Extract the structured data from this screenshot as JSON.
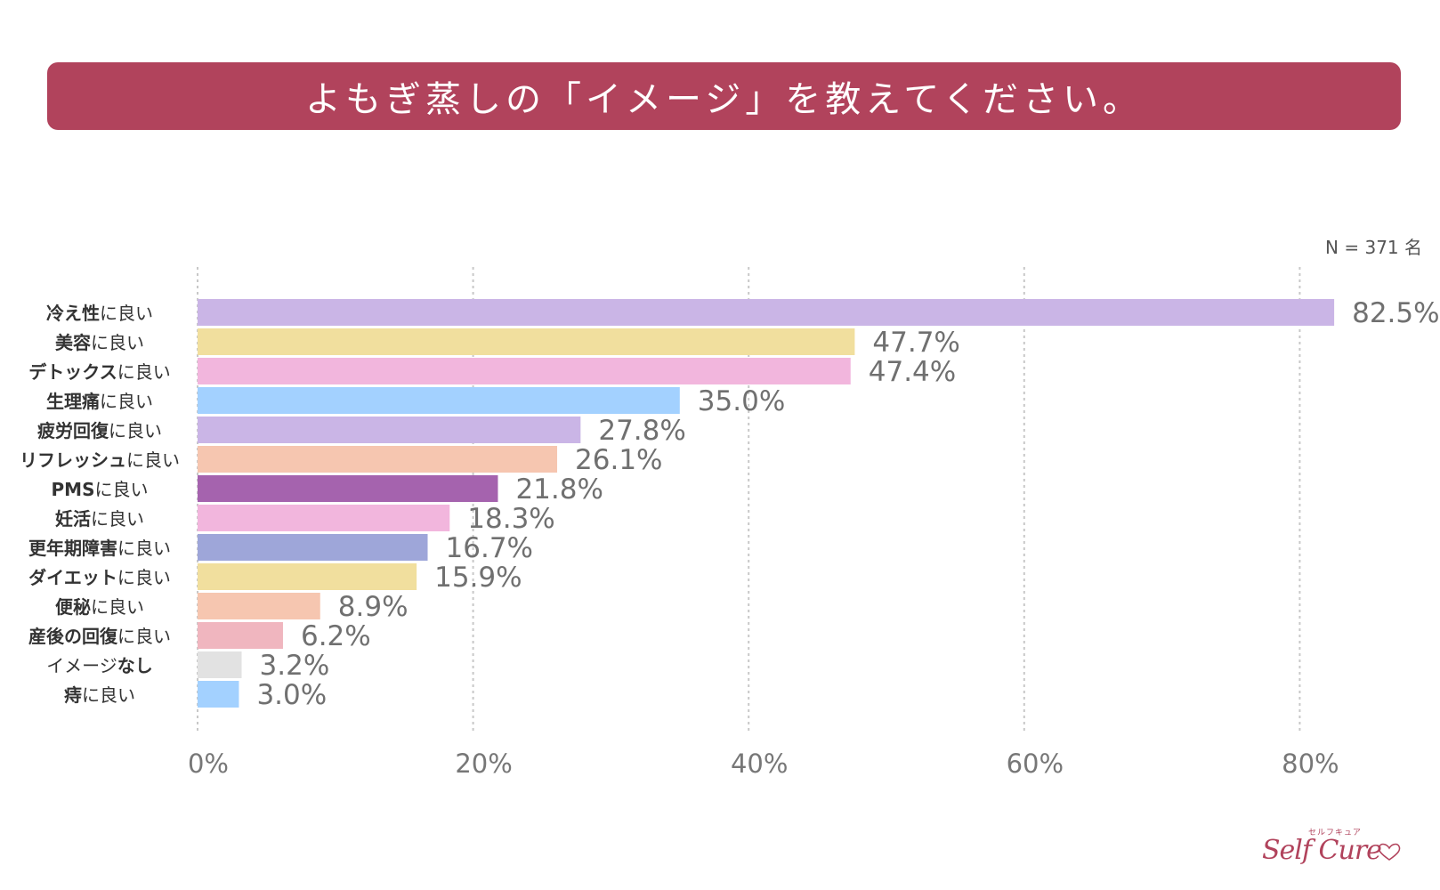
{
  "header": {
    "title": "よもぎ蒸しの「イメージ」を教えてください。",
    "sample_size": "N = 371 名"
  },
  "chart_data": {
    "type": "bar",
    "orientation": "horizontal",
    "title": "よもぎ蒸しの「イメージ」を教えてください。",
    "xlabel": "",
    "ylabel": "",
    "xlim": [
      0,
      90
    ],
    "grid": true,
    "x_ticks": [
      0,
      20,
      40,
      60,
      80
    ],
    "x_tick_labels": [
      "0%",
      "20%",
      "40%",
      "60%",
      "80%"
    ],
    "categories": [
      {
        "bold": "冷え性",
        "normal": "に良い"
      },
      {
        "bold": "美容",
        "normal": "に良い"
      },
      {
        "bold": "デトックス",
        "normal": "に良い"
      },
      {
        "bold": "生理痛",
        "normal": "に良い"
      },
      {
        "bold": "疲労回復",
        "normal": "に良い"
      },
      {
        "bold": "リフレッシュ",
        "normal": "に良い"
      },
      {
        "bold": "PMS",
        "normal": "に良い"
      },
      {
        "bold": "妊活",
        "normal": "に良い"
      },
      {
        "bold": "更年期障害",
        "normal": "に良い"
      },
      {
        "bold": "ダイエット",
        "normal": "に良い"
      },
      {
        "bold": "便秘",
        "normal": "に良い"
      },
      {
        "bold": "産後の回復",
        "normal": "に良い"
      },
      {
        "bold": "なし",
        "normal": "イメージ",
        "order": "normal-first"
      },
      {
        "bold": "痔",
        "normal": "に良い"
      }
    ],
    "values": [
      82.5,
      47.7,
      47.4,
      35.0,
      27.8,
      26.1,
      21.8,
      18.3,
      16.7,
      15.9,
      8.9,
      6.2,
      3.2,
      3.0
    ],
    "value_labels": [
      "82.5%",
      "47.7%",
      "47.4%",
      "35.0%",
      "27.8%",
      "26.1%",
      "21.8%",
      "18.3%",
      "16.7%",
      "15.9%",
      "8.9%",
      "6.2%",
      "3.2%",
      "3.0%"
    ],
    "colors": [
      "#cab5e6",
      "#f1df9e",
      "#f2b6dd",
      "#a3d1ff",
      "#cab5e6",
      "#f6c6b0",
      "#a563ae",
      "#f2b6dd",
      "#9ea6d9",
      "#f1df9e",
      "#f6c6b0",
      "#f0b6bf",
      "#e2e2e2",
      "#a3d1ff"
    ]
  },
  "logo": {
    "small_text": "セルフキュア",
    "main_text": "Self Cure"
  }
}
